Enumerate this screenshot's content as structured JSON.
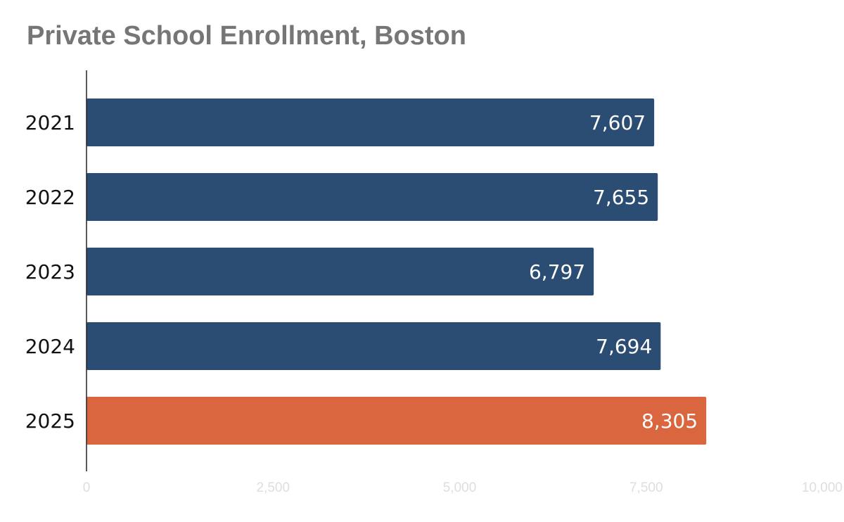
{
  "chart_data": {
    "type": "bar",
    "orientation": "horizontal",
    "title": "Private School Enrollment, Boston",
    "categories": [
      "2021",
      "2022",
      "2023",
      "2024",
      "2025"
    ],
    "values": [
      7607,
      7655,
      6797,
      7694,
      8305
    ],
    "value_labels": [
      "7,607",
      "7,655",
      "6,797",
      "7,694",
      "8,305"
    ],
    "xlim": [
      0,
      10000
    ],
    "xticks": [
      0,
      2500,
      5000,
      7500,
      10000
    ],
    "xtick_labels": [
      "0",
      "2,500",
      "5,000",
      "7,500",
      "10,000"
    ],
    "xlabel": "",
    "ylabel": "",
    "grid": false,
    "colors": [
      "#2c4d73",
      "#2c4d73",
      "#2c4d73",
      "#2c4d73",
      "#d9663f"
    ]
  }
}
